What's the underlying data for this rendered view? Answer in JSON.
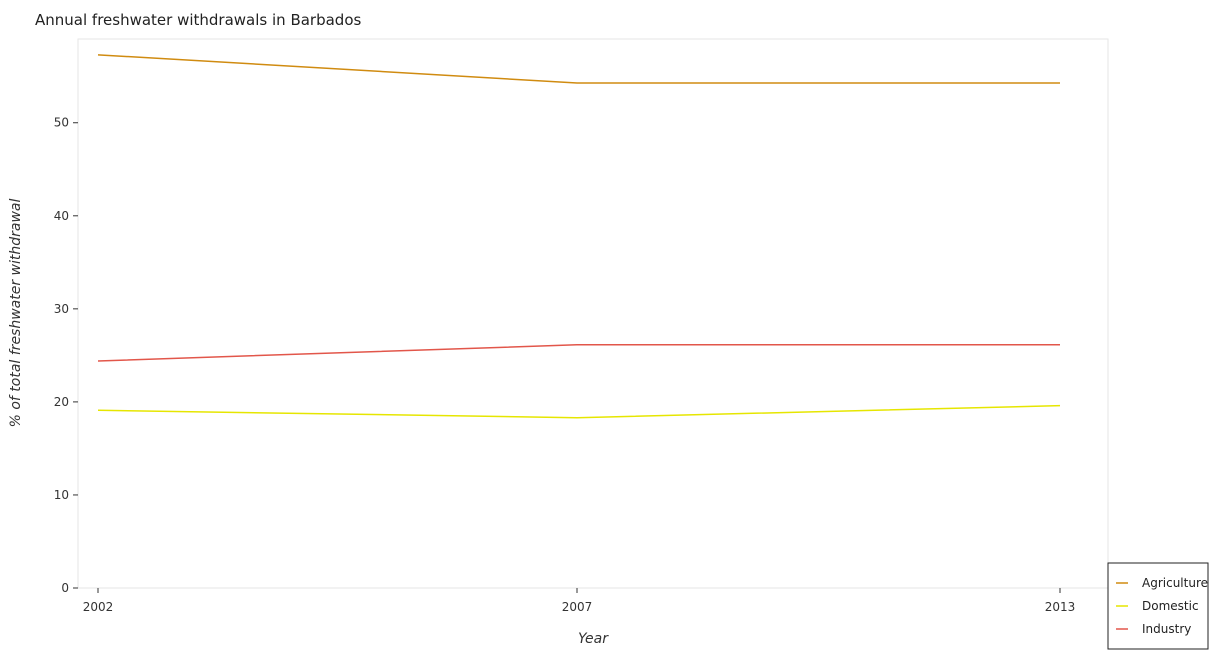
{
  "chart_data": {
    "type": "line",
    "title": "Annual freshwater withdrawals in Barbados",
    "xlabel": "Year",
    "ylabel": "% of total freshwater withdrawal",
    "categories": [
      "2002",
      "2007",
      "2013"
    ],
    "ylim": [
      0,
      59
    ],
    "yticks": [
      0,
      10,
      20,
      30,
      40,
      50
    ],
    "grid": false,
    "legend_position": "bottom-right",
    "series": [
      {
        "name": "Agriculture",
        "color": "#d08b10",
        "values": [
          57.3,
          54.27,
          54.27
        ]
      },
      {
        "name": "Domestic",
        "color": "#e6e600",
        "values": [
          19.1,
          18.3,
          19.6
        ]
      },
      {
        "name": "Industry",
        "color": "#e2564a",
        "values": [
          24.4,
          26.14,
          26.14
        ]
      }
    ]
  }
}
